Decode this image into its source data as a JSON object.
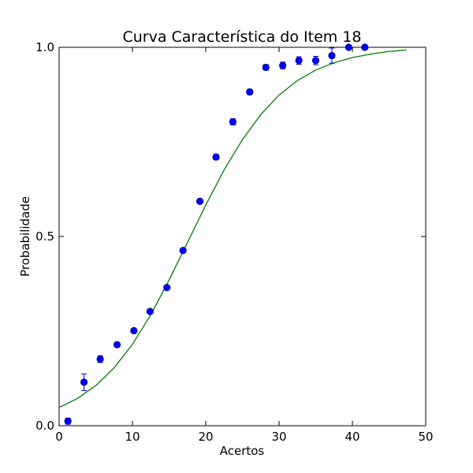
{
  "chart_data": {
    "type": "scatter",
    "title": "Curva Característica do Item 18",
    "xlabel": "Acertos",
    "ylabel": "Probabilidade",
    "xlim": [
      0,
      50
    ],
    "ylim": [
      0.0,
      1.0
    ],
    "xticks": [
      0,
      10,
      20,
      30,
      40,
      50
    ],
    "xtick_labels": [
      "0",
      "10",
      "20",
      "30",
      "40",
      "50"
    ],
    "yticks": [
      0.0,
      0.5,
      1.0
    ],
    "ytick_labels": [
      "0.0",
      "0.5",
      "1.0"
    ],
    "grid": false,
    "series": [
      {
        "kind": "points_with_error_bars",
        "color": "#0000ff",
        "edge_color": "#00008b",
        "error_color": "#0000cc",
        "x": [
          1.2,
          3.4,
          5.6,
          7.9,
          10.2,
          12.4,
          14.7,
          16.9,
          19.2,
          21.4,
          23.7,
          26.0,
          28.2,
          30.5,
          32.7,
          35.0,
          37.2,
          39.5,
          41.7
        ],
        "y": [
          0.012,
          0.115,
          0.176,
          0.214,
          0.251,
          0.302,
          0.365,
          0.463,
          0.593,
          0.71,
          0.803,
          0.882,
          0.947,
          0.952,
          0.965,
          0.965,
          0.978,
          1.0,
          1.0
        ],
        "yerr": [
          0.008,
          0.022,
          0.009,
          0.005,
          0.004,
          0.004,
          0.004,
          0.004,
          0.005,
          0.007,
          0.008,
          0.007,
          0.007,
          0.009,
          0.01,
          0.011,
          0.02,
          0.003,
          0.003
        ]
      },
      {
        "kind": "curve",
        "color": "#007f00",
        "x": [
          0,
          2.5,
          5,
          7.5,
          10,
          12.5,
          15,
          17.5,
          20,
          22.5,
          25,
          27.5,
          30,
          32.5,
          35,
          37.5,
          40,
          42.5,
          45,
          47.4
        ],
        "y": [
          0.048,
          0.072,
          0.106,
          0.153,
          0.215,
          0.293,
          0.385,
          0.484,
          0.583,
          0.676,
          0.756,
          0.822,
          0.874,
          0.912,
          0.94,
          0.959,
          0.973,
          0.982,
          0.989,
          0.993
        ]
      }
    ]
  }
}
